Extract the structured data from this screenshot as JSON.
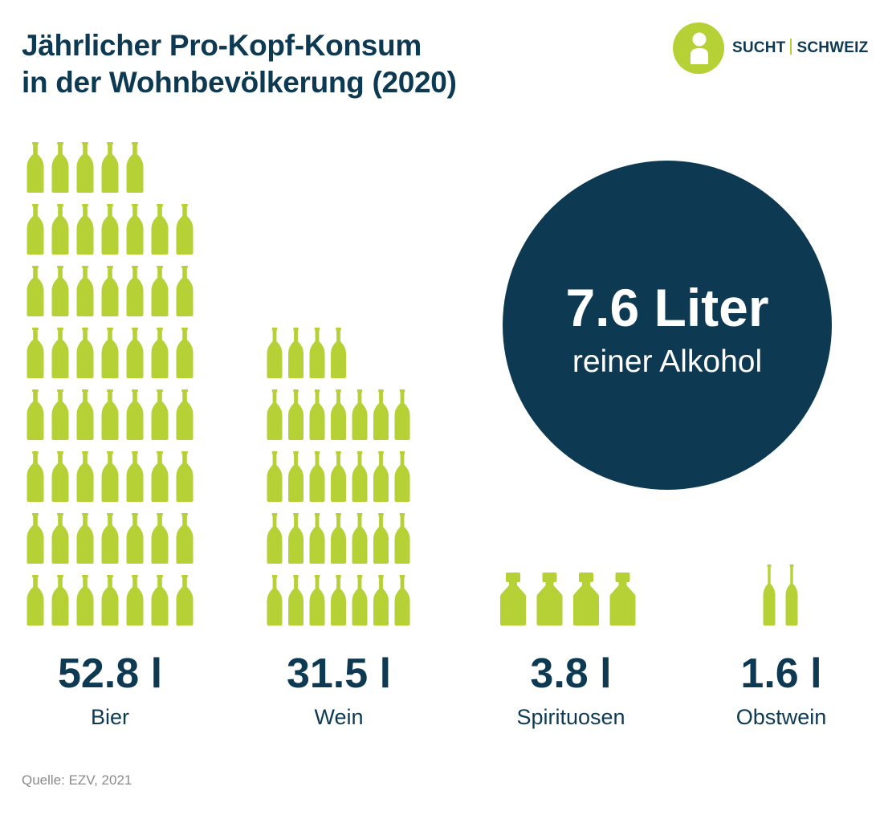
{
  "header": {
    "title_line1": "Jährlicher Pro-Kopf-Konsum",
    "title_line2": "in der Wohnbevölkerung (2020)"
  },
  "logo": {
    "text_left": "SUCHT",
    "text_right": "SCHWEIZ",
    "mark_icon": "info-person-icon"
  },
  "colors": {
    "bottle": "#b5d136",
    "navy": "#0d3a52",
    "source_gray": "#8a8a8a"
  },
  "highlight": {
    "value": "7.6 Liter",
    "label": "reiner Alkohol"
  },
  "chart_data": {
    "type": "bar",
    "categories": [
      "Bier",
      "Wein",
      "Spirituosen",
      "Obstwein"
    ],
    "values": [
      52.8,
      31.5,
      3.8,
      1.6
    ],
    "value_labels": [
      "52.8 l",
      "31.5 l",
      "3.8 l",
      "1.6 l"
    ],
    "bottle_counts": [
      54,
      32,
      4,
      2
    ],
    "bottle_icons": [
      "beer-bottle-icon",
      "wine-bottle-icon",
      "spirits-bottle-icon",
      "cider-bottle-icon"
    ],
    "unit": "l",
    "title": "Jährlicher Pro-Kopf-Konsum in der Wohnbevölkerung (2020)",
    "legend": "none",
    "grid": false
  },
  "footer": {
    "source": "Quelle: EZV, 2021"
  }
}
